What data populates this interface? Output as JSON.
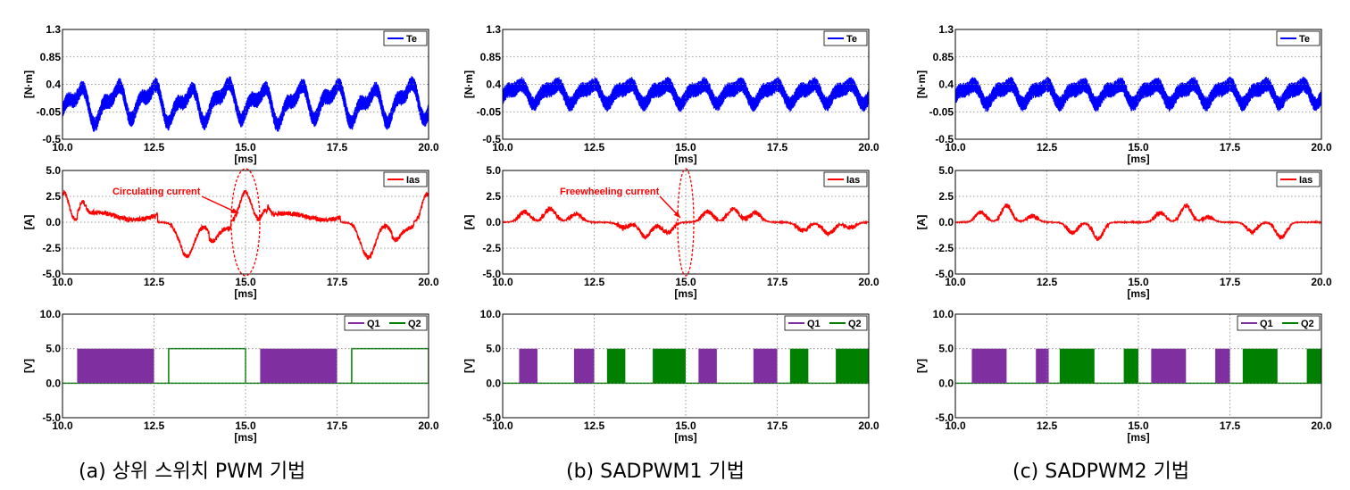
{
  "captions": [
    "(a) 상위 스위치 PWM 기법",
    "(b) SADPWM1 기법",
    "(c) SADPWM2 기법"
  ],
  "colors": {
    "te": "#0000ff",
    "ias": "#ff0000",
    "q1": "#7f2f9f",
    "q2": "#008000",
    "annotation": "#ff0000"
  },
  "chart_data": [
    {
      "type": "line",
      "column": 0,
      "row": 0,
      "variant": "a",
      "series": [
        {
          "name": "Te",
          "color": "#0000ff"
        }
      ],
      "xlabel": "[ms]",
      "ylabel": "[N·m]",
      "xlim": [
        10.0,
        20.0
      ],
      "ylim": [
        -0.5,
        1.3
      ],
      "xticks": [
        "10.0",
        "12.5",
        "15.0",
        "17.5",
        "20.0"
      ],
      "yticks": [
        "-0.5",
        "-0.05",
        "0.4",
        "0.85",
        "1.3"
      ],
      "grid": true,
      "legend": "top-right",
      "annotation": ""
    },
    {
      "type": "line",
      "column": 0,
      "row": 1,
      "variant": "a",
      "series": [
        {
          "name": "Ias",
          "color": "#ff0000"
        }
      ],
      "xlabel": "[ms]",
      "ylabel": "[A]",
      "xlim": [
        10.0,
        20.0
      ],
      "ylim": [
        -5.0,
        5.0
      ],
      "xticks": [
        "10.0",
        "12.5",
        "15.0",
        "17.5",
        "20.0"
      ],
      "yticks": [
        "-5.0",
        "-2.5",
        "0.0",
        "2.5",
        "5.0"
      ],
      "grid": true,
      "legend": "top-right",
      "annotation": "Circulating current"
    },
    {
      "type": "line",
      "column": 0,
      "row": 2,
      "variant": "a",
      "series": [
        {
          "name": "Q1",
          "color": "#7f2f9f"
        },
        {
          "name": "Q2",
          "color": "#008000"
        }
      ],
      "xlabel": "[ms]",
      "ylabel": "[V]",
      "xlim": [
        10.0,
        20.0
      ],
      "ylim": [
        -5.0,
        10.0
      ],
      "xticks": [
        "10.0",
        "12.5",
        "15.0",
        "17.5",
        "20.0"
      ],
      "yticks": [
        "-5.0",
        "0.0",
        "5.0",
        "10.0"
      ],
      "grid": true,
      "legend": "top-right",
      "annotation": ""
    },
    {
      "type": "line",
      "column": 1,
      "row": 0,
      "variant": "b",
      "series": [
        {
          "name": "Te",
          "color": "#0000ff"
        }
      ],
      "xlabel": "[ms]",
      "ylabel": "[N·m]",
      "xlim": [
        10.0,
        20.0
      ],
      "ylim": [
        -0.5,
        1.3
      ],
      "xticks": [
        "10.0",
        "12.5",
        "15.0",
        "17.5",
        "20.0"
      ],
      "yticks": [
        "-0.5",
        "-0.05",
        "0.4",
        "0.85",
        "1.3"
      ],
      "grid": true,
      "legend": "top-right",
      "annotation": ""
    },
    {
      "type": "line",
      "column": 1,
      "row": 1,
      "variant": "b",
      "series": [
        {
          "name": "Ias",
          "color": "#ff0000"
        }
      ],
      "xlabel": "[ms]",
      "ylabel": "[A]",
      "xlim": [
        10.0,
        20.0
      ],
      "ylim": [
        -5.0,
        5.0
      ],
      "xticks": [
        "10.0",
        "12.5",
        "15.0",
        "17.5",
        "20.0"
      ],
      "yticks": [
        "-5.0",
        "-2.5",
        "0.0",
        "2.5",
        "5.0"
      ],
      "grid": true,
      "legend": "top-right",
      "annotation": "Freewheeling current"
    },
    {
      "type": "line",
      "column": 1,
      "row": 2,
      "variant": "b",
      "series": [
        {
          "name": "Q1",
          "color": "#7f2f9f"
        },
        {
          "name": "Q2",
          "color": "#008000"
        }
      ],
      "xlabel": "[ms]",
      "ylabel": "[V]",
      "xlim": [
        10.0,
        20.0
      ],
      "ylim": [
        -5.0,
        10.0
      ],
      "xticks": [
        "10.0",
        "12.5",
        "15.0",
        "17.5",
        "20.0"
      ],
      "yticks": [
        "-5.0",
        "0.0",
        "5.0",
        "10.0"
      ],
      "grid": true,
      "legend": "top-right",
      "annotation": ""
    },
    {
      "type": "line",
      "column": 2,
      "row": 0,
      "variant": "c",
      "series": [
        {
          "name": "Te",
          "color": "#0000ff"
        }
      ],
      "xlabel": "[ms]",
      "ylabel": "[N·m]",
      "xlim": [
        10.0,
        20.0
      ],
      "ylim": [
        -0.5,
        1.3
      ],
      "xticks": [
        "10.0",
        "12.5",
        "15.0",
        "17.5",
        "20.0"
      ],
      "yticks": [
        "-0.5",
        "-0.05",
        "0.4",
        "0.85",
        "1.3"
      ],
      "grid": true,
      "legend": "top-right",
      "annotation": ""
    },
    {
      "type": "line",
      "column": 2,
      "row": 1,
      "variant": "c",
      "series": [
        {
          "name": "Ias",
          "color": "#ff0000"
        }
      ],
      "xlabel": "[ms]",
      "ylabel": "[A]",
      "xlim": [
        10.0,
        20.0
      ],
      "ylim": [
        -5.0,
        5.0
      ],
      "xticks": [
        "10.0",
        "12.5",
        "15.0",
        "17.5",
        "20.0"
      ],
      "yticks": [
        "-5.0",
        "-2.5",
        "0.0",
        "2.5",
        "5.0"
      ],
      "grid": true,
      "legend": "top-right",
      "annotation": ""
    },
    {
      "type": "line",
      "column": 2,
      "row": 2,
      "variant": "c",
      "series": [
        {
          "name": "Q1",
          "color": "#7f2f9f"
        },
        {
          "name": "Q2",
          "color": "#008000"
        }
      ],
      "xlabel": "[ms]",
      "ylabel": "[V]",
      "xlim": [
        10.0,
        20.0
      ],
      "ylim": [
        -5.0,
        10.0
      ],
      "xticks": [
        "10.0",
        "12.5",
        "15.0",
        "17.5",
        "20.0"
      ],
      "yticks": [
        "-5.0",
        "0.0",
        "5.0",
        "10.0"
      ],
      "grid": true,
      "legend": "top-right",
      "annotation": ""
    }
  ]
}
